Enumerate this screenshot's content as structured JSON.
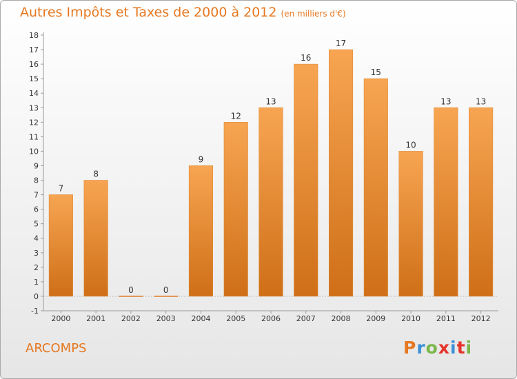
{
  "header": {
    "title": "Autres Impôts et Taxes de 2000 à 2012",
    "subtitle": "(en milliers d'€)"
  },
  "commune": "ARCOMPS",
  "logo": {
    "text": "Proxiti",
    "colors": [
      "#e67820",
      "#3a8fd6",
      "#7ab648",
      "#e6332a",
      "#3a8fd6",
      "#e6332a",
      "#7ab648"
    ]
  },
  "chart_data": {
    "type": "bar",
    "title": "Autres Impôts et Taxes de 2000 à 2012",
    "subtitle": "(en milliers d'€)",
    "categories": [
      "2000",
      "2001",
      "2002",
      "2003",
      "2004",
      "2005",
      "2006",
      "2007",
      "2008",
      "2009",
      "2010",
      "2011",
      "2012"
    ],
    "values": [
      7,
      8,
      0,
      0,
      9,
      12,
      13,
      16,
      17,
      15,
      10,
      13,
      13
    ],
    "data_labels": [
      "7",
      "8",
      "0",
      "0",
      "9",
      "12",
      "13",
      "16",
      "17",
      "15",
      "10",
      "13",
      "13"
    ],
    "yticks": [
      -1,
      0,
      1,
      2,
      3,
      4,
      5,
      6,
      7,
      8,
      9,
      10,
      11,
      12,
      13,
      14,
      15,
      16,
      17,
      18
    ],
    "ylim": [
      -1,
      18
    ],
    "grid": false,
    "bar_color": "#f0903a"
  }
}
